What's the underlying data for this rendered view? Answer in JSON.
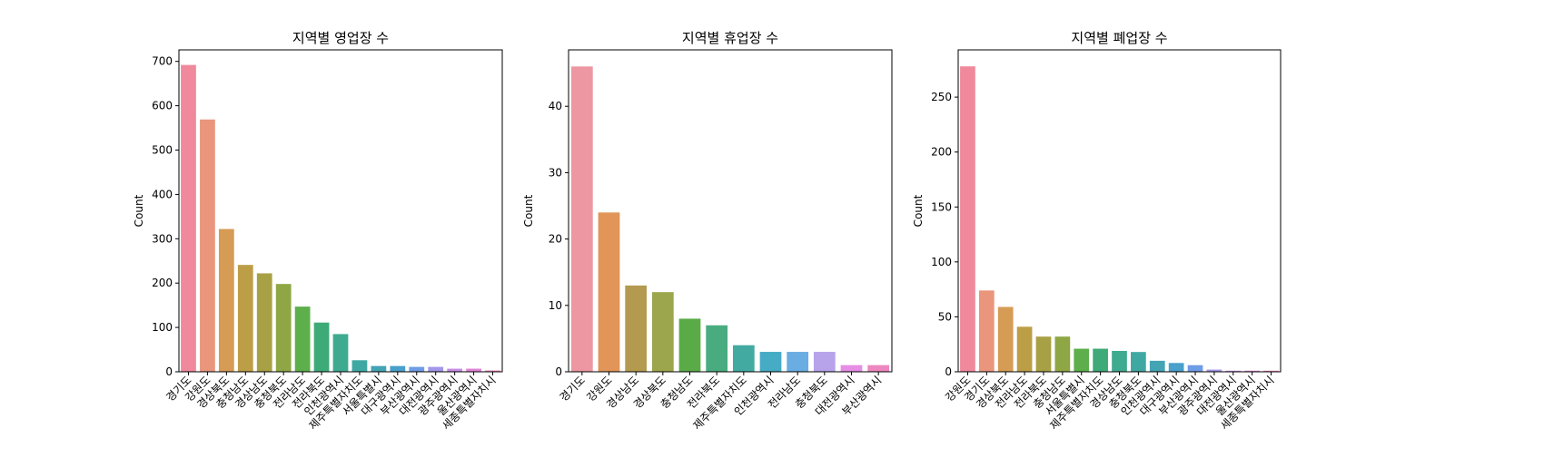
{
  "chart_data": [
    {
      "type": "bar",
      "title": "지역별 영업장 수",
      "ylabel": "Count",
      "categories": [
        "경기도",
        "강원도",
        "경상북도",
        "충청남도",
        "경상남도",
        "충청북도",
        "전라남도",
        "전라북도",
        "인천광역시",
        "제주특별자치도",
        "서울특별시",
        "대구광역시",
        "부산광역시",
        "대전광역시",
        "광주광역시",
        "울산광역시",
        "세종특별자치시"
      ],
      "values": [
        692,
        569,
        322,
        241,
        222,
        198,
        147,
        111,
        85,
        26,
        13,
        13,
        11,
        11,
        7,
        7,
        3
      ],
      "colors": [
        "#f0899c",
        "#e9967d",
        "#d69b55",
        "#bc9e47",
        "#a8a044",
        "#8ea644",
        "#5daf4c",
        "#3eaa78",
        "#3eab90",
        "#40a8a2",
        "#43a4b4",
        "#48a0cb",
        "#6e9ce6",
        "#a397ea",
        "#c88de8",
        "#e283d7",
        "#ef84b9"
      ],
      "ylim": [
        0,
        726
      ],
      "yticks": [
        0,
        100,
        200,
        300,
        400,
        500,
        600,
        700
      ]
    },
    {
      "type": "bar",
      "title": "지역별 휴업장 수",
      "ylabel": "Count",
      "categories": [
        "경기도",
        "강원도",
        "경상남도",
        "경상북도",
        "충청남도",
        "전라북도",
        "제주특별자치도",
        "인천광역시",
        "전라남도",
        "충청북도",
        "대전광역시",
        "부산광역시"
      ],
      "values": [
        46,
        24,
        13,
        12,
        8,
        7,
        4,
        3,
        3,
        3,
        1,
        1
      ],
      "colors": [
        "#ec97a2",
        "#e19558",
        "#b49a4f",
        "#9ca64c",
        "#5aab48",
        "#48ac80",
        "#42aaa0",
        "#46abc5",
        "#6aade3",
        "#b6a3ea",
        "#e68de6",
        "#ee87bf"
      ],
      "ylim": [
        0,
        48.5
      ],
      "yticks": [
        0,
        10,
        20,
        30,
        40
      ]
    },
    {
      "type": "bar",
      "title": "지역별 폐업장 수",
      "ylabel": "Count",
      "categories": [
        "강원도",
        "경기도",
        "경상북도",
        "전라남도",
        "전라북도",
        "충청남도",
        "서울특별시",
        "제주특별자치도",
        "경상남도",
        "충청북도",
        "인천광역시",
        "대구광역시",
        "부산광역시",
        "광주광역시",
        "대전광역시",
        "울산광역시",
        "세종특별자치시"
      ],
      "values": [
        278,
        74,
        59,
        41,
        32,
        32,
        21,
        21,
        19,
        18,
        10,
        8,
        6,
        2,
        1,
        1,
        1
      ],
      "colors": [
        "#f0899c",
        "#e9967d",
        "#d69b55",
        "#bc9e47",
        "#a8a044",
        "#8ea644",
        "#5daf4c",
        "#3eaa78",
        "#3eab90",
        "#40a8a2",
        "#43a4b4",
        "#48a0cb",
        "#6e9ce6",
        "#a397ea",
        "#c88de8",
        "#e283d7",
        "#ef84b9"
      ],
      "ylim": [
        0,
        293
      ],
      "yticks": [
        0,
        50,
        100,
        150,
        200,
        250
      ]
    }
  ]
}
